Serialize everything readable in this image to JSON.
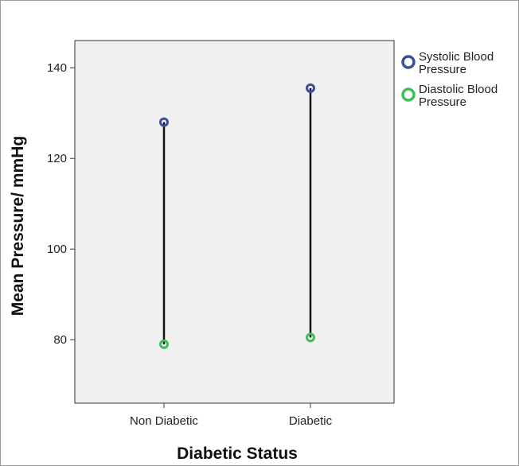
{
  "chart_data": {
    "type": "dot-range",
    "categories": [
      "Non Diabetic",
      "Diabetic"
    ],
    "series": [
      {
        "name": "Systolic Blood Pressure",
        "values": [
          128,
          135.5
        ],
        "color": "#3b4f9b"
      },
      {
        "name": "Diastolic Blood Pressure",
        "values": [
          79,
          80.5
        ],
        "color": "#3fbf5a"
      }
    ],
    "title": "",
    "xlabel": "Diabetic Status",
    "ylabel": "Mean Pressure/ mmHg",
    "ylim": [
      66,
      146
    ],
    "yticks": [
      80,
      100,
      120,
      140
    ],
    "range_line": true,
    "grid": false,
    "legend": "right"
  }
}
